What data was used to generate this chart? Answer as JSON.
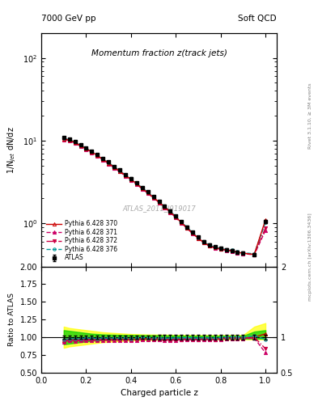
{
  "title_main": "Momentum fraction z(track jets)",
  "top_left_label": "7000 GeV pp",
  "top_right_label": "Soft QCD",
  "right_label_top": "Rivet 3.1.10, ≥ 3M events",
  "right_label_bot": "mcplots.cern.ch [arXiv:1306.3436]",
  "watermark": "ATLAS_2011_I919017",
  "ylabel_main": "1/N$_{jet}$ dN/dz",
  "ylabel_ratio": "Ratio to ATLAS",
  "xlabel": "Charged particle z",
  "xlim": [
    0.0,
    1.05
  ],
  "ylim_main_log": [
    0.3,
    200
  ],
  "ylim_ratio": [
    0.5,
    2.0
  ],
  "z_values": [
    0.1,
    0.125,
    0.15,
    0.175,
    0.2,
    0.225,
    0.25,
    0.275,
    0.3,
    0.325,
    0.35,
    0.375,
    0.4,
    0.425,
    0.45,
    0.475,
    0.5,
    0.525,
    0.55,
    0.575,
    0.6,
    0.625,
    0.65,
    0.675,
    0.7,
    0.725,
    0.75,
    0.775,
    0.8,
    0.825,
    0.85,
    0.875,
    0.9,
    0.95,
    1.0
  ],
  "atlas_values": [
    11.0,
    10.5,
    9.8,
    9.0,
    8.2,
    7.5,
    6.8,
    6.1,
    5.5,
    4.9,
    4.4,
    3.9,
    3.5,
    3.1,
    2.7,
    2.4,
    2.1,
    1.85,
    1.62,
    1.42,
    1.22,
    1.05,
    0.9,
    0.78,
    0.68,
    0.6,
    0.55,
    0.52,
    0.5,
    0.48,
    0.47,
    0.45,
    0.44,
    0.42,
    1.05
  ],
  "atlas_errors": [
    0.3,
    0.28,
    0.25,
    0.22,
    0.2,
    0.18,
    0.16,
    0.15,
    0.13,
    0.12,
    0.11,
    0.1,
    0.09,
    0.08,
    0.07,
    0.065,
    0.06,
    0.055,
    0.05,
    0.045,
    0.04,
    0.035,
    0.03,
    0.028,
    0.025,
    0.022,
    0.02,
    0.019,
    0.018,
    0.017,
    0.016,
    0.015,
    0.014,
    0.013,
    0.04
  ],
  "py370_values": [
    10.5,
    10.2,
    9.5,
    8.7,
    8.0,
    7.3,
    6.6,
    5.95,
    5.35,
    4.78,
    4.28,
    3.8,
    3.4,
    3.02,
    2.65,
    2.35,
    2.05,
    1.81,
    1.58,
    1.38,
    1.19,
    1.02,
    0.88,
    0.76,
    0.66,
    0.585,
    0.535,
    0.505,
    0.49,
    0.475,
    0.465,
    0.445,
    0.435,
    0.42,
    1.1
  ],
  "py371_values": [
    10.3,
    10.0,
    9.3,
    8.55,
    7.85,
    7.15,
    6.5,
    5.85,
    5.25,
    4.68,
    4.2,
    3.73,
    3.33,
    2.97,
    2.61,
    2.31,
    2.02,
    1.78,
    1.55,
    1.36,
    1.17,
    1.01,
    0.87,
    0.75,
    0.655,
    0.58,
    0.53,
    0.5,
    0.485,
    0.47,
    0.46,
    0.44,
    0.43,
    0.415,
    0.82
  ],
  "py372_values": [
    10.4,
    10.1,
    9.4,
    8.65,
    7.95,
    7.25,
    6.58,
    5.92,
    5.32,
    4.75,
    4.25,
    3.78,
    3.38,
    3.0,
    2.63,
    2.33,
    2.04,
    1.8,
    1.57,
    1.37,
    1.18,
    1.02,
    0.875,
    0.758,
    0.66,
    0.585,
    0.535,
    0.505,
    0.49,
    0.475,
    0.465,
    0.445,
    0.435,
    0.42,
    0.88
  ],
  "py376_values": [
    10.6,
    10.3,
    9.6,
    8.8,
    8.1,
    7.38,
    6.68,
    6.02,
    5.42,
    4.84,
    4.33,
    3.85,
    3.44,
    3.06,
    2.69,
    2.38,
    2.08,
    1.83,
    1.6,
    1.4,
    1.21,
    1.04,
    0.895,
    0.773,
    0.672,
    0.596,
    0.545,
    0.514,
    0.498,
    0.482,
    0.472,
    0.452,
    0.44,
    0.428,
    1.02
  ],
  "color_py370": "#cc0000",
  "color_py371": "#cc0066",
  "color_py372": "#cc0044",
  "color_py376": "#009999",
  "color_atlas": "#000000",
  "band_yellow": "#ffff00",
  "band_green": "#00cc00",
  "ratio_band_yellow_lo": [
    0.85,
    0.87,
    0.88,
    0.89,
    0.9,
    0.91,
    0.92,
    0.93,
    0.935,
    0.94,
    0.945,
    0.95,
    0.955,
    0.957,
    0.96,
    0.962,
    0.963,
    0.964,
    0.965,
    0.966,
    0.967,
    0.968,
    0.969,
    0.97,
    0.97,
    0.97,
    0.97,
    0.97,
    0.97,
    0.97,
    0.97,
    0.97,
    0.97,
    0.97,
    0.97
  ],
  "ratio_band_yellow_hi": [
    1.15,
    1.13,
    1.12,
    1.11,
    1.1,
    1.09,
    1.08,
    1.07,
    1.065,
    1.06,
    1.055,
    1.05,
    1.045,
    1.043,
    1.04,
    1.038,
    1.037,
    1.036,
    1.035,
    1.034,
    1.033,
    1.032,
    1.031,
    1.03,
    1.03,
    1.03,
    1.03,
    1.03,
    1.03,
    1.03,
    1.03,
    1.03,
    1.03,
    1.15,
    1.2
  ],
  "ratio_band_green_lo": [
    0.9,
    0.91,
    0.92,
    0.93,
    0.94,
    0.95,
    0.955,
    0.96,
    0.963,
    0.965,
    0.967,
    0.968,
    0.969,
    0.97,
    0.971,
    0.972,
    0.973,
    0.974,
    0.975,
    0.976,
    0.977,
    0.978,
    0.979,
    0.98,
    0.98,
    0.98,
    0.98,
    0.98,
    0.98,
    0.98,
    0.98,
    0.98,
    0.98,
    0.98,
    0.98
  ],
  "ratio_band_green_hi": [
    1.1,
    1.09,
    1.08,
    1.07,
    1.06,
    1.05,
    1.045,
    1.04,
    1.037,
    1.035,
    1.033,
    1.032,
    1.031,
    1.03,
    1.029,
    1.028,
    1.027,
    1.026,
    1.025,
    1.024,
    1.023,
    1.022,
    1.021,
    1.02,
    1.02,
    1.02,
    1.02,
    1.02,
    1.02,
    1.02,
    1.02,
    1.02,
    1.02,
    1.08,
    1.1
  ]
}
